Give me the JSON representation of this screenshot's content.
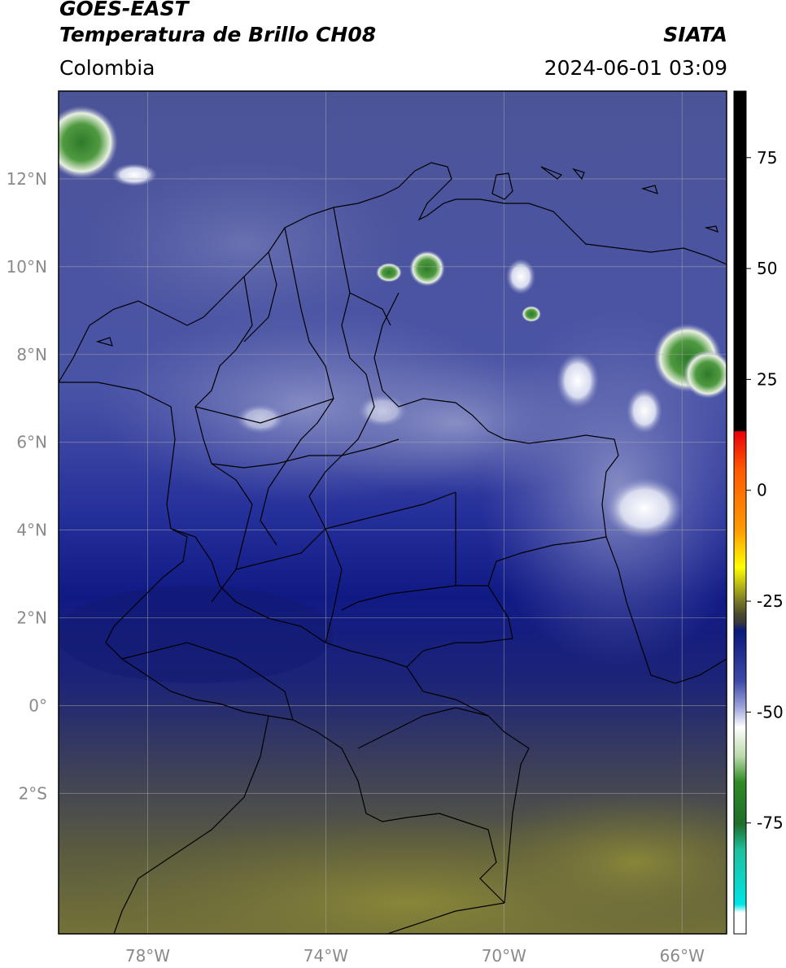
{
  "header": {
    "satellite": "GOES-EAST",
    "product": "Temperatura de Brillo CH08",
    "brand": "SIATA",
    "region": "Colombia",
    "timestamp": "2024-06-01 03:09"
  },
  "map": {
    "lon_range": [
      -80,
      -65
    ],
    "lat_range": [
      -5.2,
      14
    ],
    "lat_ticks": [
      {
        "value": 12,
        "label": "12°N"
      },
      {
        "value": 10,
        "label": "10°N"
      },
      {
        "value": 8,
        "label": "8°N"
      },
      {
        "value": 6,
        "label": "6°N"
      },
      {
        "value": 4,
        "label": "4°N"
      },
      {
        "value": 2,
        "label": "2°N"
      },
      {
        "value": 0,
        "label": "0°"
      },
      {
        "value": -2,
        "label": "2°S"
      }
    ],
    "lon_ticks": [
      {
        "value": -78,
        "label": "78°W"
      },
      {
        "value": -74,
        "label": "74°W"
      },
      {
        "value": -70,
        "label": "70°W"
      },
      {
        "value": -66,
        "label": "66°W"
      }
    ],
    "grid": true
  },
  "colorbar": {
    "range": [
      -100,
      90
    ],
    "ticks": [
      {
        "value": 75,
        "label": "75"
      },
      {
        "value": 50,
        "label": "50"
      },
      {
        "value": 25,
        "label": "25"
      },
      {
        "value": 0,
        "label": "0"
      },
      {
        "value": -25,
        "label": "-25"
      },
      {
        "value": -50,
        "label": "-50"
      },
      {
        "value": -75,
        "label": "-75"
      }
    ],
    "colors": {
      "warm_cap": "#000000",
      "red": "#e8000b",
      "orange": "#ff8c00",
      "yellow": "#ffff00",
      "olive": "#4b4b2e",
      "navy": "#0a1a7a",
      "white": "#ffffff",
      "green": "#2e8a25",
      "teal": "#1ebf9c",
      "cyan": "#00e5e5"
    }
  }
}
